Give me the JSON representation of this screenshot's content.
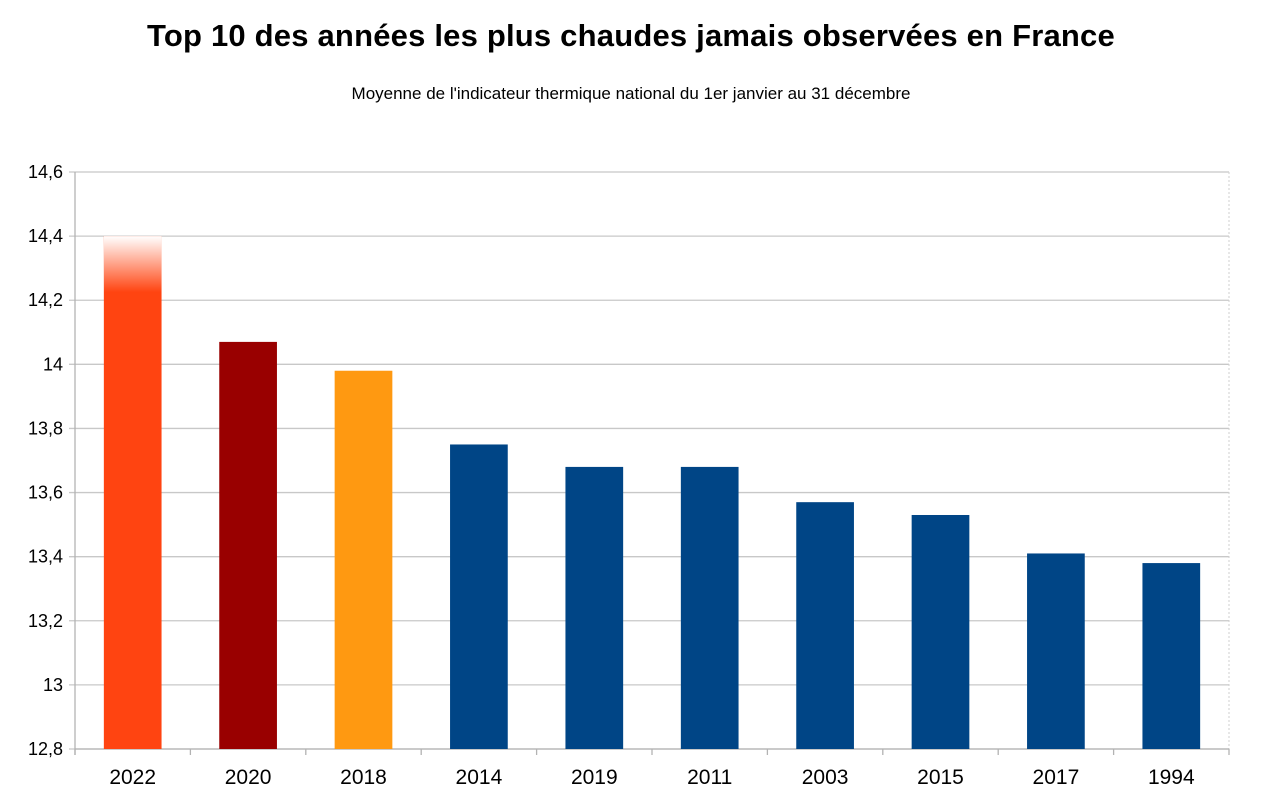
{
  "chart_data": {
    "type": "bar",
    "title": "Top 10 des années les plus chaudes jamais observées en France",
    "subtitle": "Moyenne de l'indicateur thermique national du 1er janvier au 31 décembre",
    "xlabel": "",
    "ylabel": "",
    "categories": [
      "2022",
      "2020",
      "2018",
      "2014",
      "2019",
      "2011",
      "2003",
      "2015",
      "2017",
      "1994"
    ],
    "values": [
      14.4,
      14.07,
      13.98,
      13.75,
      13.68,
      13.68,
      13.57,
      13.53,
      13.41,
      13.38
    ],
    "colors": [
      "#ff4411",
      "#990000",
      "#ff9911",
      "#004586",
      "#004586",
      "#004586",
      "#004586",
      "#004586",
      "#004586",
      "#004586"
    ],
    "highlight_fade_top": [
      true,
      false,
      false,
      false,
      false,
      false,
      false,
      false,
      false,
      false
    ],
    "ylim": [
      12.8,
      14.6
    ],
    "yticks": [
      12.8,
      13,
      13.2,
      13.4,
      13.6,
      13.8,
      14,
      14.2,
      14.4,
      14.6
    ],
    "ytick_labels": [
      "12,8",
      "13",
      "13,2",
      "13,4",
      "13,6",
      "13,8",
      "14",
      "14,2",
      "14,4",
      "14,6"
    ],
    "grid": true,
    "legend": "none"
  }
}
